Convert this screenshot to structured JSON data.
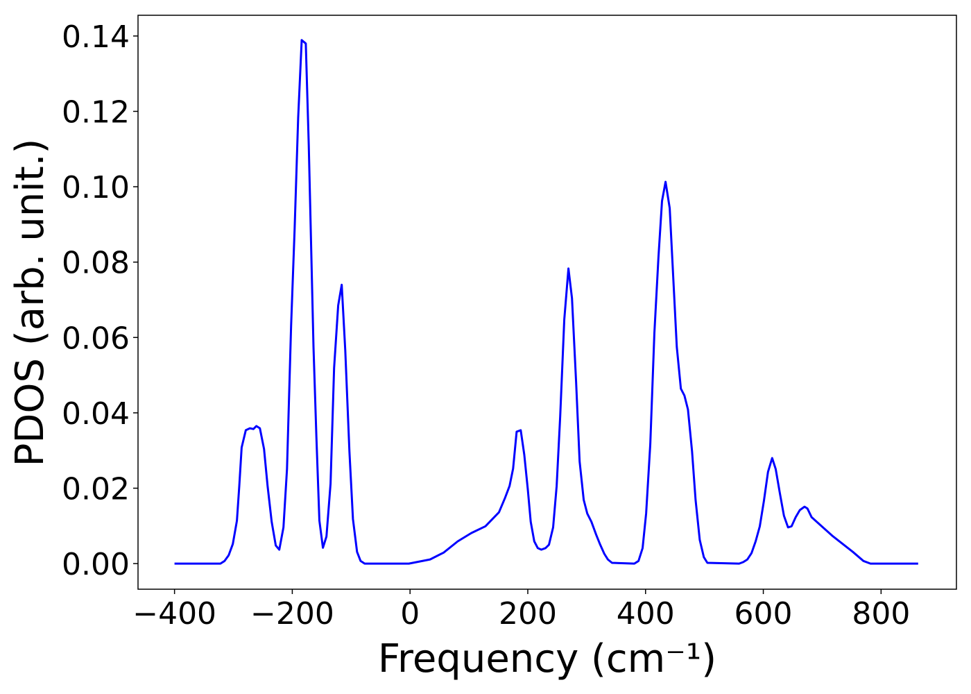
{
  "chart_data": {
    "type": "line",
    "x_label": "Frequency (cm⁻¹)",
    "y_label": "PDOS (arb. unit.)",
    "xlim": [
      -462,
      928
    ],
    "ylim": [
      -0.0068,
      0.1455
    ],
    "xticks": [
      {
        "value": -400,
        "label": "−400"
      },
      {
        "value": -200,
        "label": "−200"
      },
      0,
      200,
      400,
      600,
      800
    ],
    "yticks": [
      {
        "value": 0,
        "label": "0.00"
      },
      {
        "value": 0.02,
        "label": "0.02"
      },
      {
        "value": 0.04,
        "label": "0.04"
      },
      {
        "value": 0.06,
        "label": "0.06"
      },
      {
        "value": 0.08,
        "label": "0.08"
      },
      {
        "value": 0.1,
        "label": "0.10"
      },
      {
        "value": 0.12,
        "label": "0.12"
      },
      {
        "value": 0.14,
        "label": "0.14"
      }
    ],
    "grid": false,
    "series": [
      {
        "color": "#0000ff",
        "x": [
          -400,
          -322,
          -315,
          -308,
          -301,
          -294,
          -290,
          -286,
          -279,
          -272,
          -266,
          -261,
          -255,
          -248,
          -242,
          -235,
          -228,
          -222,
          -215,
          -209,
          -202,
          -196,
          -190,
          -184,
          -177,
          -172,
          -164,
          -159,
          -154,
          -148,
          -142,
          -135,
          -129,
          -122,
          -116,
          -110,
          -103,
          -97,
          -90,
          -84,
          -77,
          -2,
          34,
          57,
          81,
          104,
          128,
          151,
          161,
          169,
          175,
          181,
          188,
          194,
          200,
          205,
          211,
          217,
          223,
          230,
          236,
          243,
          249,
          255,
          262,
          269,
          275,
          282,
          288,
          295,
          301,
          308,
          316,
          323,
          330,
          336,
          343,
          381,
          388,
          395,
          401,
          408,
          415,
          422,
          428,
          434,
          441,
          447,
          453,
          460,
          466,
          472,
          479,
          485,
          492,
          499,
          505,
          559,
          566,
          573,
          580,
          587,
          594,
          601,
          608,
          615,
          621,
          628,
          635,
          642,
          648,
          655,
          662,
          670,
          675,
          682,
          717,
          752,
          770,
          782,
          863
        ],
        "values": [
          0,
          0,
          0.0007,
          0.0022,
          0.0052,
          0.0114,
          0.0206,
          0.0308,
          0.0354,
          0.0359,
          0.0357,
          0.0365,
          0.0359,
          0.0304,
          0.0206,
          0.0111,
          0.0048,
          0.0037,
          0.0096,
          0.0251,
          0.063,
          0.0888,
          0.1183,
          0.1389,
          0.138,
          0.1109,
          0.0575,
          0.0335,
          0.0114,
          0.0042,
          0.0072,
          0.0212,
          0.0519,
          0.0685,
          0.074,
          0.0566,
          0.0298,
          0.0118,
          0.0031,
          0.0007,
          0,
          0,
          0.0011,
          0.0029,
          0.0059,
          0.0081,
          0.0099,
          0.0136,
          0.0173,
          0.0206,
          0.0252,
          0.035,
          0.0354,
          0.0289,
          0.0197,
          0.0111,
          0.0059,
          0.0041,
          0.0037,
          0.0041,
          0.005,
          0.0096,
          0.0206,
          0.0391,
          0.0648,
          0.0783,
          0.0704,
          0.0483,
          0.0271,
          0.0169,
          0.0133,
          0.0111,
          0.0077,
          0.005,
          0.0026,
          0.0011,
          0.0002,
          0,
          0.0007,
          0.0041,
          0.0133,
          0.0317,
          0.0612,
          0.0814,
          0.0962,
          0.1013,
          0.0943,
          0.0759,
          0.0575,
          0.0464,
          0.0446,
          0.0409,
          0.0298,
          0.0169,
          0.0063,
          0.0017,
          0.0002,
          0,
          0.0004,
          0.0011,
          0.0028,
          0.0059,
          0.0099,
          0.0166,
          0.0243,
          0.028,
          0.0251,
          0.0188,
          0.0127,
          0.0096,
          0.0099,
          0.0123,
          0.0142,
          0.0151,
          0.0146,
          0.0123,
          0.0074,
          0.0031,
          0.0007,
          0,
          0
        ]
      }
    ]
  }
}
